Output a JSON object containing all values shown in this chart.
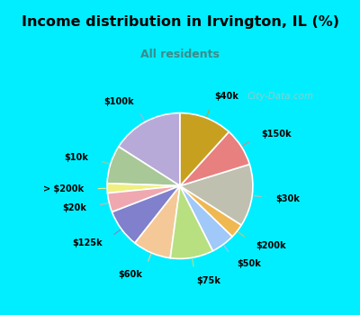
{
  "title": "Income distribution in Irvington, IL (%)",
  "subtitle": "All residents",
  "title_color": "#000000",
  "subtitle_color": "#3d8b8b",
  "bg_cyan": "#00eeff",
  "bg_chart_top_left": "#d8f0e8",
  "bg_chart_bottom_right": "#e8f8f0",
  "watermark": "City-Data.com",
  "labels": [
    "$100k",
    "$10k",
    "> $200k",
    "$20k",
    "$125k",
    "$60k",
    "$75k",
    "$50k",
    "$200k",
    "$30k",
    "$150k",
    "$40k"
  ],
  "values": [
    15,
    8,
    2,
    4,
    8,
    8,
    9,
    5,
    3,
    13,
    8,
    11
  ],
  "colors": [
    "#b8aad8",
    "#a8c898",
    "#f0f080",
    "#f0a8b0",
    "#8080cc",
    "#f5c898",
    "#b8e080",
    "#a0c8f8",
    "#f0b850",
    "#c0c0b0",
    "#e88080",
    "#c8a020"
  ],
  "start_angle": 90,
  "label_r": 1.32,
  "line_r": 1.12
}
